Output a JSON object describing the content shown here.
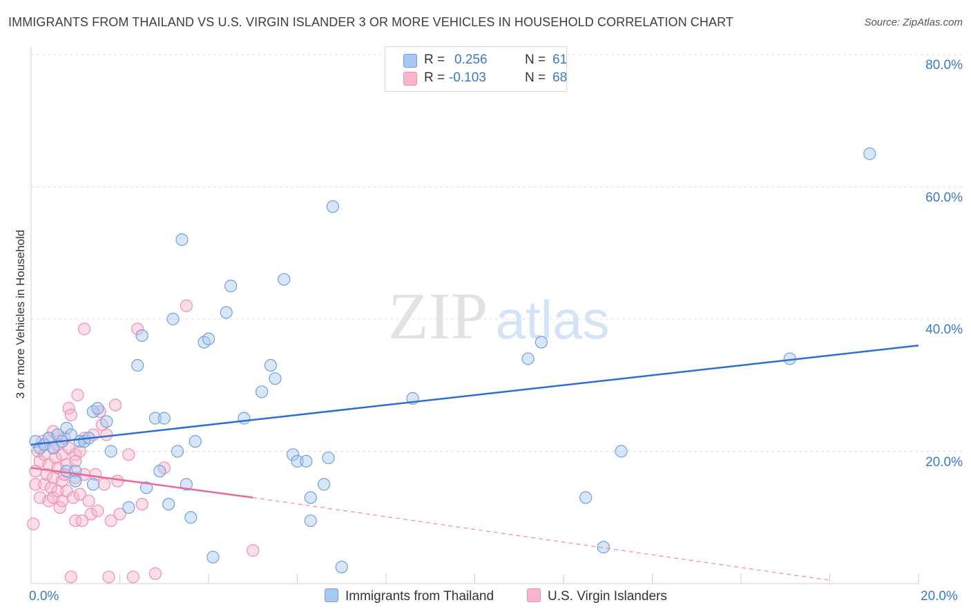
{
  "title": "IMMIGRANTS FROM THAILAND VS U.S. VIRGIN ISLANDER 3 OR MORE VEHICLES IN HOUSEHOLD CORRELATION CHART",
  "source": "Source: ZipAtlas.com",
  "watermark_zip": "ZIP",
  "watermark_atlas": "atlas",
  "legend": {
    "r_label": "R =",
    "n_label": "N =",
    "series1": {
      "r": "0.256",
      "n": "61"
    },
    "series2": {
      "r": "-0.103",
      "n": "68"
    }
  },
  "colors": {
    "blue_fill": "#a8c8f0",
    "blue_stroke": "#6fa0dc",
    "blue_line": "#2b6fd0",
    "pink_fill": "#f7b6cc",
    "pink_stroke": "#ec8fb0",
    "pink_line": "#e8699a",
    "tick_text": "#3a78c8",
    "grid": "#dcdcdc"
  },
  "chart_data": {
    "type": "scatter",
    "title": "IMMIGRANTS FROM THAILAND VS U.S. VIRGIN ISLANDER 3 OR MORE VEHICLES IN HOUSEHOLD CORRELATION CHART",
    "xlabel": "",
    "ylabel": "3 or more Vehicles in Household",
    "xlim": [
      0,
      20
    ],
    "ylim": [
      0,
      80
    ],
    "x_tick_labels": [
      "0.0%",
      "20.0%"
    ],
    "y_tick_labels": [
      "20.0%",
      "40.0%",
      "60.0%",
      "80.0%"
    ],
    "y_tick_values": [
      20,
      40,
      60,
      80
    ],
    "legend_position": "top-center",
    "series": [
      {
        "name": "Immigrants from Thailand",
        "r": 0.256,
        "n": 61,
        "trend": {
          "x0": 0,
          "y0": 21.0,
          "x1": 20,
          "y1": 36.0
        },
        "points": [
          [
            0.1,
            21.5
          ],
          [
            0.2,
            20.5
          ],
          [
            0.3,
            21.0
          ],
          [
            0.4,
            22.0
          ],
          [
            0.5,
            20.5
          ],
          [
            0.6,
            22.5
          ],
          [
            0.7,
            21.5
          ],
          [
            0.8,
            23.5
          ],
          [
            0.8,
            17.0
          ],
          [
            0.9,
            22.5
          ],
          [
            1.0,
            17.0
          ],
          [
            1.0,
            15.5
          ],
          [
            1.1,
            21.5
          ],
          [
            1.2,
            21.5
          ],
          [
            1.3,
            22.0
          ],
          [
            1.4,
            26.0
          ],
          [
            1.4,
            15.0
          ],
          [
            1.5,
            26.5
          ],
          [
            1.7,
            24.5
          ],
          [
            1.8,
            20.0
          ],
          [
            2.2,
            11.5
          ],
          [
            2.4,
            33.0
          ],
          [
            2.5,
            37.5
          ],
          [
            2.6,
            14.5
          ],
          [
            2.8,
            25.0
          ],
          [
            2.9,
            17.0
          ],
          [
            3.0,
            25.0
          ],
          [
            3.1,
            12.0
          ],
          [
            3.2,
            40.0
          ],
          [
            3.3,
            20.0
          ],
          [
            3.4,
            52.0
          ],
          [
            3.5,
            15.0
          ],
          [
            3.6,
            10.0
          ],
          [
            3.7,
            21.5
          ],
          [
            3.9,
            36.5
          ],
          [
            4.0,
            37.0
          ],
          [
            4.1,
            4.0
          ],
          [
            4.4,
            41.0
          ],
          [
            4.5,
            45.0
          ],
          [
            4.8,
            25.0
          ],
          [
            5.2,
            29.0
          ],
          [
            5.4,
            33.0
          ],
          [
            5.5,
            31.0
          ],
          [
            5.7,
            46.0
          ],
          [
            5.9,
            19.5
          ],
          [
            6.0,
            18.5
          ],
          [
            6.2,
            18.5
          ],
          [
            6.3,
            13.0
          ],
          [
            6.3,
            9.5
          ],
          [
            6.6,
            15.0
          ],
          [
            6.7,
            19.0
          ],
          [
            6.8,
            57.0
          ],
          [
            7.0,
            2.5
          ],
          [
            8.6,
            28.0
          ],
          [
            11.2,
            34.0
          ],
          [
            11.5,
            36.5
          ],
          [
            12.5,
            13.0
          ],
          [
            12.9,
            5.5
          ],
          [
            13.3,
            20.0
          ],
          [
            17.1,
            34.0
          ],
          [
            18.9,
            65.0
          ]
        ]
      },
      {
        "name": "U.S. Virgin Islanders",
        "r": -0.103,
        "n": 68,
        "trend": {
          "x0": 0,
          "y0": 17.5,
          "x1": 5.0,
          "y1": 13.0,
          "dashed_to_x": 18.0,
          "dashed_to_y": 0.5
        },
        "points": [
          [
            0.05,
            9.0
          ],
          [
            0.1,
            17.0
          ],
          [
            0.1,
            15.0
          ],
          [
            0.15,
            20.0
          ],
          [
            0.2,
            18.5
          ],
          [
            0.2,
            13.0
          ],
          [
            0.25,
            21.5
          ],
          [
            0.3,
            19.5
          ],
          [
            0.3,
            15.0
          ],
          [
            0.35,
            16.5
          ],
          [
            0.4,
            22.0
          ],
          [
            0.4,
            18.0
          ],
          [
            0.4,
            12.5
          ],
          [
            0.45,
            14.5
          ],
          [
            0.5,
            20.5
          ],
          [
            0.5,
            16.0
          ],
          [
            0.5,
            13.0
          ],
          [
            0.55,
            19.0
          ],
          [
            0.6,
            21.0
          ],
          [
            0.6,
            17.5
          ],
          [
            0.6,
            14.0
          ],
          [
            0.65,
            11.5
          ],
          [
            0.7,
            19.5
          ],
          [
            0.7,
            15.5
          ],
          [
            0.7,
            12.5
          ],
          [
            0.75,
            22.0
          ],
          [
            0.75,
            16.5
          ],
          [
            0.8,
            18.0
          ],
          [
            0.8,
            14.0
          ],
          [
            0.85,
            20.5
          ],
          [
            0.85,
            26.5
          ],
          [
            0.9,
            25.5
          ],
          [
            0.9,
            1.0
          ],
          [
            0.95,
            13.0
          ],
          [
            1.0,
            19.5
          ],
          [
            1.0,
            16.0
          ],
          [
            1.0,
            9.5
          ],
          [
            1.05,
            28.5
          ],
          [
            1.1,
            20.0
          ],
          [
            1.1,
            13.5
          ],
          [
            1.15,
            9.5
          ],
          [
            1.2,
            22.0
          ],
          [
            1.2,
            16.5
          ],
          [
            1.3,
            12.5
          ],
          [
            1.35,
            10.5
          ],
          [
            1.4,
            22.5
          ],
          [
            1.45,
            16.5
          ],
          [
            1.5,
            11.0
          ],
          [
            1.55,
            26.0
          ],
          [
            1.6,
            24.0
          ],
          [
            1.65,
            15.0
          ],
          [
            1.7,
            22.5
          ],
          [
            1.75,
            1.0
          ],
          [
            1.8,
            9.5
          ],
          [
            1.9,
            27.0
          ],
          [
            1.95,
            15.5
          ],
          [
            2.0,
            10.5
          ],
          [
            2.2,
            19.5
          ],
          [
            2.3,
            1.0
          ],
          [
            2.5,
            12.0
          ],
          [
            2.8,
            1.5
          ],
          [
            3.0,
            17.5
          ],
          [
            2.4,
            38.5
          ],
          [
            1.2,
            38.5
          ],
          [
            3.5,
            42.0
          ],
          [
            5.0,
            5.0
          ],
          [
            0.5,
            23.0
          ],
          [
            1.0,
            18.5
          ]
        ]
      }
    ]
  },
  "bottom_legend": [
    "Immigrants from Thailand",
    "U.S. Virgin Islanders"
  ]
}
